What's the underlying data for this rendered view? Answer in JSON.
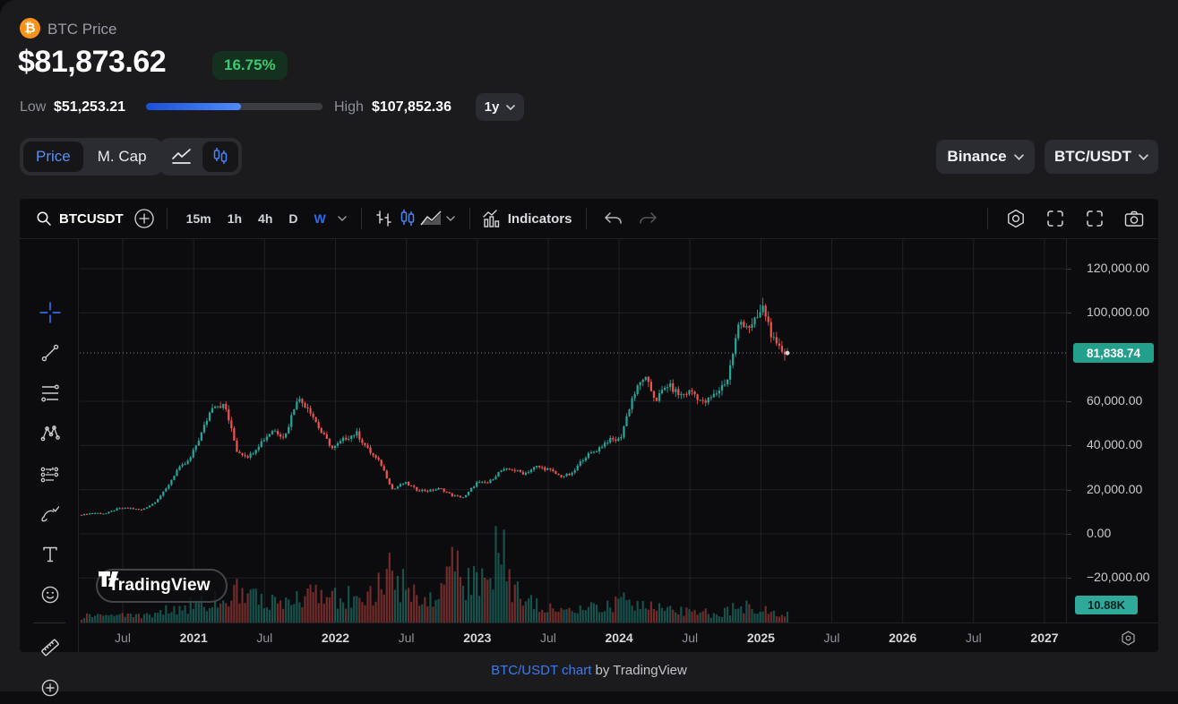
{
  "header": {
    "coin_symbol": "₿",
    "coin_label": "BTC Price",
    "price": "$81,873.62",
    "change_badge": "16.75%",
    "low_label": "Low",
    "low_value": "$51,253.21",
    "high_label": "High",
    "high_value": "$107,852.36",
    "range_selector": "1y",
    "range_progress_pct": 54
  },
  "controls": {
    "price_tab": "Price",
    "mcap_tab": "M. Cap",
    "exchange_dropdown": "Binance",
    "pair_dropdown": "BTC/USDT"
  },
  "toolbar": {
    "symbol": "BTCUSDT",
    "intervals": [
      "15m",
      "1h",
      "4h",
      "D",
      "W"
    ],
    "active_interval": "W",
    "indicators_label": "Indicators"
  },
  "price_axis": {
    "gridline_labels": [
      {
        "price": 120000,
        "label": "120,000.00"
      },
      {
        "price": 100000,
        "label": "100,000.00"
      },
      {
        "price": 60000,
        "label": "60,000.00"
      },
      {
        "price": 40000,
        "label": "40,000.00"
      },
      {
        "price": 20000,
        "label": "20,000.00"
      },
      {
        "price": 0,
        "label": "0.00"
      },
      {
        "price": -20000,
        "label": "−20,000.00"
      }
    ],
    "current_price_label": "81,838.74",
    "volume_label": "10.88K"
  },
  "time_axis": {
    "ticks": [
      "Jul",
      "2021",
      "Jul",
      "2022",
      "Jul",
      "2023",
      "Jul",
      "2024",
      "Jul",
      "2025",
      "Jul",
      "2026",
      "Jul",
      "2027"
    ]
  },
  "watermark": "TradingView",
  "footer": {
    "link": "BTC/USDT chart",
    "rest": " by TradingView"
  },
  "colors": {
    "accent_blue": "#2e6bf0",
    "badge_green": "#3cc96e",
    "candle_up": "#26a69a",
    "candle_down": "#ef5350",
    "current_price_label_bg": "#23a08c",
    "progress_blue": "#2f6ee8"
  },
  "chart_data": {
    "type": "candlestick",
    "symbol": "BTC/USDT",
    "exchange": "Binance",
    "interval": "W",
    "title": "BTC/USDT weekly candles with volume",
    "current_price": 81838.74,
    "up_color": "#26a69a",
    "down_color": "#ef5350",
    "y_axis": {
      "visible_min": -20000,
      "visible_max": 126000,
      "gridlines": [
        120000,
        100000,
        60000,
        40000,
        20000,
        0,
        -20000
      ]
    },
    "x_axis": {
      "first_data_month": "2020-04",
      "last_data_month": "2025-03",
      "axis_extends_to": "2027-12"
    },
    "monthly_series": {
      "start_month": "2020-04",
      "months": 60,
      "close": [
        8600,
        9450,
        9140,
        11350,
        11650,
        10780,
        13800,
        19700,
        29000,
        33100,
        45200,
        58800,
        57700,
        37300,
        35000,
        41500,
        47100,
        43800,
        61300,
        57000,
        46200,
        38500,
        43200,
        45500,
        37600,
        31800,
        19900,
        23300,
        20000,
        19400,
        20500,
        17200,
        16500,
        23100,
        23100,
        28500,
        29200,
        27200,
        30500,
        29200,
        26000,
        27000,
        34700,
        37700,
        42300,
        42600,
        61200,
        71300,
        60600,
        67500,
        62700,
        64600,
        59000,
        63300,
        70200,
        96400,
        93400,
        102400,
        84400,
        81874
      ],
      "volume_k": [
        7,
        9,
        7,
        8,
        8,
        9,
        11,
        15,
        18,
        22,
        25,
        28,
        30,
        45,
        38,
        26,
        24,
        26,
        30,
        33,
        30,
        34,
        30,
        36,
        30,
        48,
        62,
        42,
        36,
        34,
        30,
        80,
        44,
        55,
        48,
        100,
        42,
        34,
        28,
        18,
        15,
        12,
        16,
        18,
        20,
        24,
        27,
        30,
        18,
        16,
        14,
        12,
        12,
        10,
        14,
        22,
        18,
        16,
        12,
        10.88
      ]
    }
  }
}
